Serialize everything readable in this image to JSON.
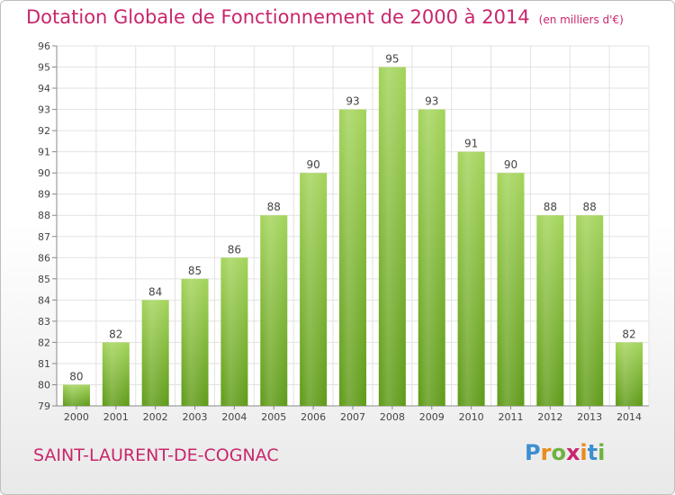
{
  "header": {
    "title": "Dotation Globale de Fonctionnement de 2000 à 2014",
    "unit": "(en milliers d'€)"
  },
  "footer": {
    "commune": "SAINT-LAURENT-DE-COGNAC",
    "logo": "Proxiti"
  },
  "chart_data": {
    "type": "bar",
    "title": "Dotation Globale de Fonctionnement de 2000 à 2014",
    "subtitle": "(en milliers d'€)",
    "categories": [
      "2000",
      "2001",
      "2002",
      "2003",
      "2004",
      "2005",
      "2006",
      "2007",
      "2008",
      "2009",
      "2010",
      "2011",
      "2012",
      "2013",
      "2014"
    ],
    "values": [
      80,
      82,
      84,
      85,
      86,
      88,
      90,
      93,
      95,
      93,
      91,
      90,
      88,
      88,
      82
    ],
    "ylim": [
      79,
      96
    ],
    "yticks": [
      79,
      80,
      81,
      82,
      83,
      84,
      85,
      86,
      87,
      88,
      89,
      90,
      91,
      92,
      93,
      94,
      95,
      96
    ],
    "grid": true,
    "bar_color_top": "#a3d45a",
    "bar_color_bottom": "#5e9a17"
  }
}
